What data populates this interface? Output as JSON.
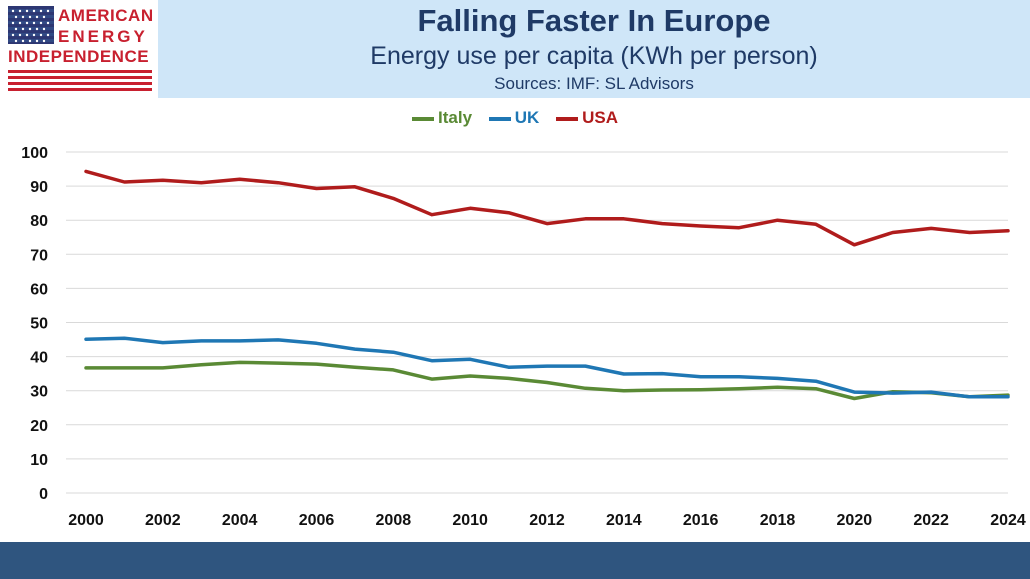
{
  "header": {
    "title": "Falling Faster In Europe",
    "subtitle": "Energy use per capita (KWh per person)",
    "sources": "Sources: IMF: SL Advisors"
  },
  "logo": {
    "line1": "AMERICAN",
    "line2": "ENERGY",
    "line3": "INDEPENDENCE"
  },
  "colors": {
    "italy": "#5a8a35",
    "uk": "#1f77b4",
    "usa": "#b01c1c",
    "grid": "#d9d9d9"
  },
  "chart_data": {
    "type": "line",
    "title": "Falling Faster In Europe",
    "subtitle": "Energy use per capita (KWh per person)",
    "xlabel": "",
    "ylabel": "",
    "x": [
      2000,
      2001,
      2002,
      2003,
      2004,
      2005,
      2006,
      2007,
      2008,
      2009,
      2010,
      2011,
      2012,
      2013,
      2014,
      2015,
      2016,
      2017,
      2018,
      2019,
      2020,
      2021,
      2022,
      2023,
      2024
    ],
    "x_tick_labels": [
      "2000",
      "2002",
      "2004",
      "2006",
      "2008",
      "2010",
      "2012",
      "2014",
      "2016",
      "2018",
      "2020",
      "2022",
      "2024"
    ],
    "y_tick_labels": [
      "0",
      "10",
      "20",
      "30",
      "40",
      "50",
      "60",
      "70",
      "80",
      "90",
      "100"
    ],
    "ylim": [
      0,
      100
    ],
    "grid": true,
    "legend_position": "top-center",
    "series": [
      {
        "name": "Italy",
        "color": "#5a8a35",
        "values": [
          36.7,
          36.7,
          36.7,
          37.6,
          38.3,
          38.1,
          37.8,
          36.9,
          36.1,
          33.4,
          34.3,
          33.6,
          32.4,
          30.7,
          30.0,
          30.2,
          30.3,
          30.6,
          31.0,
          30.6,
          27.7,
          29.7,
          29.4,
          28.2,
          28.7
        ]
      },
      {
        "name": "UK",
        "color": "#1f77b4",
        "values": [
          45.1,
          45.4,
          44.1,
          44.6,
          44.6,
          44.9,
          43.9,
          42.2,
          41.3,
          38.8,
          39.2,
          36.9,
          37.2,
          37.2,
          34.9,
          35.0,
          34.1,
          34.1,
          33.6,
          32.8,
          29.6,
          29.3,
          29.6,
          28.2,
          28.2
        ]
      },
      {
        "name": "USA",
        "color": "#b01c1c",
        "values": [
          94.3,
          91.2,
          91.7,
          91.0,
          92.0,
          91.0,
          89.3,
          89.8,
          86.4,
          81.6,
          83.5,
          82.2,
          79.0,
          80.4,
          80.4,
          79.0,
          78.3,
          77.8,
          80.0,
          78.8,
          72.8,
          76.4,
          77.6,
          76.4,
          76.9
        ]
      }
    ]
  }
}
